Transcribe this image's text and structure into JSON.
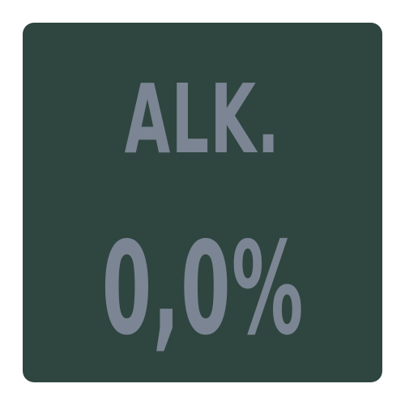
{
  "badge": {
    "line1": "ALK.",
    "line2": "0,0%",
    "colors": {
      "background": "#2f4640",
      "text": "#7b8593",
      "page": "#ffffff"
    }
  }
}
